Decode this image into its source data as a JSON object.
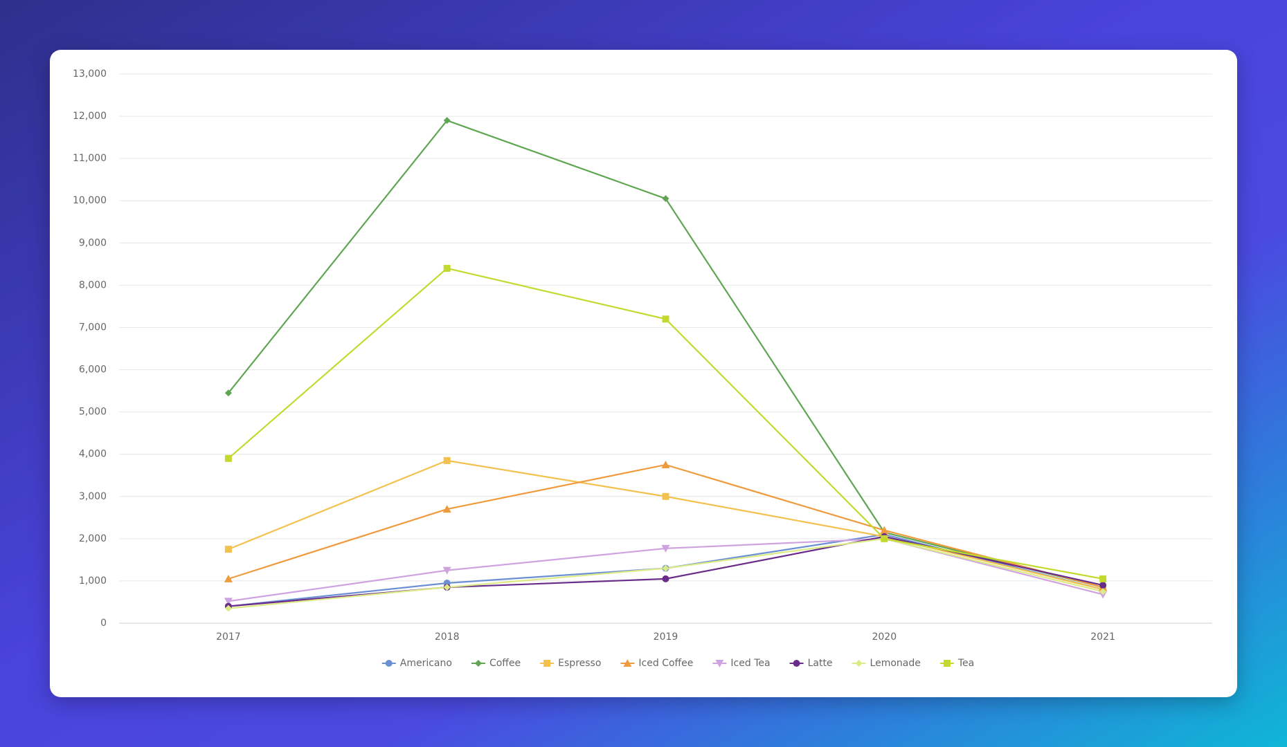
{
  "chart_data": {
    "type": "line",
    "categories": [
      "2017",
      "2018",
      "2019",
      "2020",
      "2021"
    ],
    "series": [
      {
        "name": "Americano",
        "color": "#6b8fd4",
        "marker": "circle",
        "values": [
          400,
          950,
          1300,
          2100,
          800
        ]
      },
      {
        "name": "Coffee",
        "color": "#5fa552",
        "marker": "diamond",
        "values": [
          5450,
          11900,
          10050,
          2150,
          850
        ]
      },
      {
        "name": "Espresso",
        "color": "#f2c14e",
        "marker": "square",
        "values": [
          1750,
          3850,
          3000,
          2050,
          800
        ]
      },
      {
        "name": "Iced Coffee",
        "color": "#ef9a3c",
        "marker": "triangle",
        "values": [
          1050,
          2700,
          3750,
          2200,
          850
        ]
      },
      {
        "name": "Iced Tea",
        "color": "#cfa3e0",
        "marker": "triangle-down",
        "values": [
          520,
          1250,
          1770,
          2000,
          680
        ]
      },
      {
        "name": "Latte",
        "color": "#6a2c8a",
        "marker": "circle",
        "values": [
          400,
          850,
          1050,
          2050,
          900
        ]
      },
      {
        "name": "Lemonade",
        "color": "#dceb86",
        "marker": "diamond",
        "values": [
          350,
          850,
          1300,
          2000,
          750
        ]
      },
      {
        "name": "Tea",
        "color": "#c3d92e",
        "marker": "square",
        "values": [
          3900,
          8400,
          7200,
          2000,
          1050
        ]
      }
    ],
    "ylim": [
      0,
      13000
    ],
    "yticks": [
      0,
      {
        "value": 1000,
        "label": "1,000"
      },
      {
        "value": 2000,
        "label": "2,000"
      },
      {
        "value": 3000,
        "label": "3,000"
      },
      {
        "value": 4000,
        "label": "4,000"
      },
      {
        "value": 5000,
        "label": "5,000"
      },
      {
        "value": 6000,
        "label": "6,000"
      },
      {
        "value": 7000,
        "label": "7,000"
      },
      {
        "value": 8000,
        "label": "8,000"
      },
      {
        "value": 9000,
        "label": "9,000"
      },
      {
        "value": 10000,
        "label": "10,000"
      },
      {
        "value": 11000,
        "label": "11,000"
      },
      {
        "value": 12000,
        "label": "12,000"
      },
      {
        "value": 13000,
        "label": "13,000"
      }
    ],
    "grid": true,
    "legend": "bottom"
  }
}
